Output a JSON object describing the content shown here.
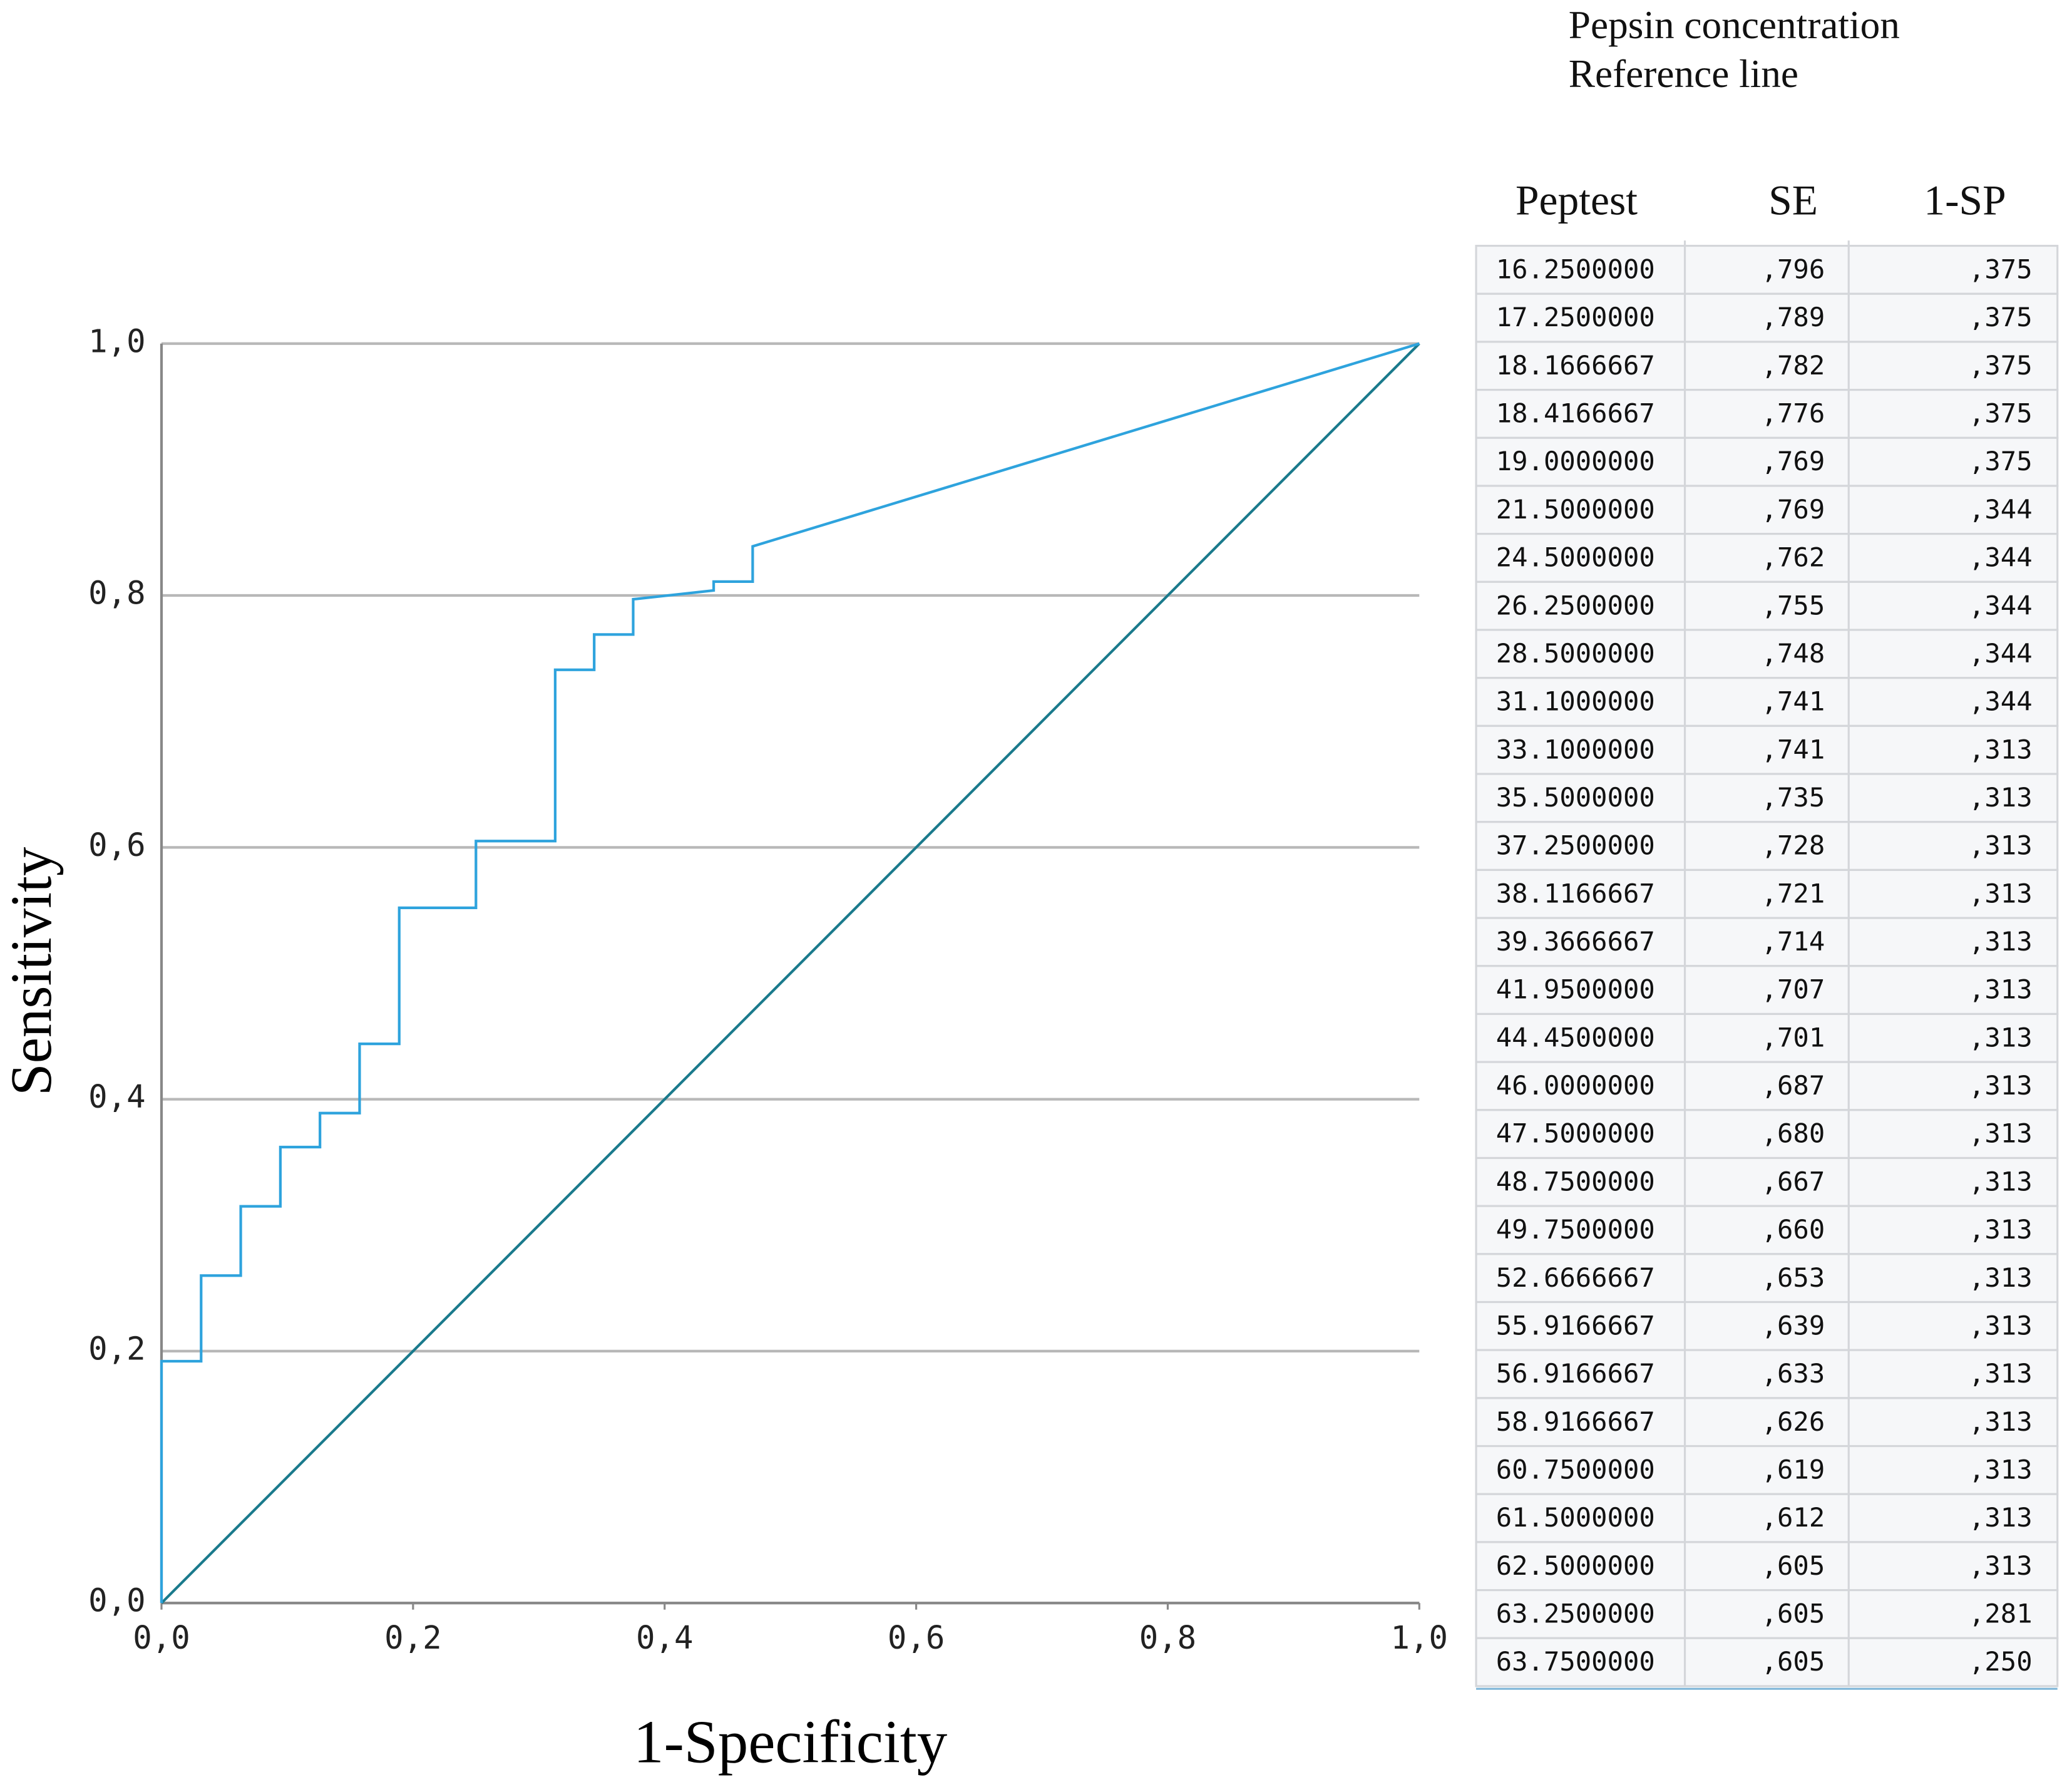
{
  "chart_data": {
    "type": "line",
    "x_label": "1-Specificity",
    "y_label": "Sensitivity",
    "xlim": [
      0,
      1
    ],
    "ylim": [
      0,
      1
    ],
    "xticks": [
      {
        "value": 0,
        "label": "0,0"
      },
      {
        "value": 0.2,
        "label": "0,2"
      },
      {
        "value": 0.4,
        "label": "0,4"
      },
      {
        "value": 0.6,
        "label": "0,6"
      },
      {
        "value": 0.8,
        "label": "0,8"
      },
      {
        "value": 1,
        "label": "1,0"
      }
    ],
    "yticks": [
      {
        "value": 0,
        "label": "0,0"
      },
      {
        "value": 0.2,
        "label": "0,2"
      },
      {
        "value": 0.4,
        "label": "0,4"
      },
      {
        "value": 0.6,
        "label": "0,6"
      },
      {
        "value": 0.8,
        "label": "0,8"
      },
      {
        "value": 1,
        "label": "1,0"
      }
    ],
    "grid": true,
    "series": [
      {
        "name": "Pepsin concentration",
        "color": "#2ea3dd",
        "x": [
          0,
          0,
          0.0315,
          0.0315,
          0.063,
          0.063,
          0.0945,
          0.0945,
          0.126,
          0.126,
          0.1575,
          0.1575,
          0.189,
          0.189,
          0.25,
          0.25,
          0.313,
          0.313,
          0.344,
          0.344,
          0.375,
          0.375,
          0.439,
          0.439,
          0.47,
          0.47,
          1
        ],
        "values": [
          0,
          0.192,
          0.192,
          0.26,
          0.26,
          0.315,
          0.315,
          0.362,
          0.362,
          0.389,
          0.389,
          0.444,
          0.444,
          0.552,
          0.552,
          0.605,
          0.605,
          0.741,
          0.741,
          0.769,
          0.769,
          0.797,
          0.804,
          0.811,
          0.811,
          0.839,
          1
        ]
      },
      {
        "name": "Reference line",
        "color": "#1a7a8c",
        "x": [
          0,
          1
        ],
        "values": [
          0,
          1
        ]
      }
    ]
  },
  "table": {
    "headers": [
      "Peptest",
      "SE",
      "1-SP"
    ],
    "rows": [
      [
        "16.2500000",
        ",796",
        ",375"
      ],
      [
        "17.2500000",
        ",789",
        ",375"
      ],
      [
        "18.1666667",
        ",782",
        ",375"
      ],
      [
        "18.4166667",
        ",776",
        ",375"
      ],
      [
        "19.0000000",
        ",769",
        ",375"
      ],
      [
        "21.5000000",
        ",769",
        ",344"
      ],
      [
        "24.5000000",
        ",762",
        ",344"
      ],
      [
        "26.2500000",
        ",755",
        ",344"
      ],
      [
        "28.5000000",
        ",748",
        ",344"
      ],
      [
        "31.1000000",
        ",741",
        ",344"
      ],
      [
        "33.1000000",
        ",741",
        ",313"
      ],
      [
        "35.5000000",
        ",735",
        ",313"
      ],
      [
        "37.2500000",
        ",728",
        ",313"
      ],
      [
        "38.1166667",
        ",721",
        ",313"
      ],
      [
        "39.3666667",
        ",714",
        ",313"
      ],
      [
        "41.9500000",
        ",707",
        ",313"
      ],
      [
        "44.4500000",
        ",701",
        ",313"
      ],
      [
        "46.0000000",
        ",687",
        ",313"
      ],
      [
        "47.5000000",
        ",680",
        ",313"
      ],
      [
        "48.7500000",
        ",667",
        ",313"
      ],
      [
        "49.7500000",
        ",660",
        ",313"
      ],
      [
        "52.6666667",
        ",653",
        ",313"
      ],
      [
        "55.9166667",
        ",639",
        ",313"
      ],
      [
        "56.9166667",
        ",633",
        ",313"
      ],
      [
        "58.9166667",
        ",626",
        ",313"
      ],
      [
        "60.7500000",
        ",619",
        ",313"
      ],
      [
        "61.5000000",
        ",612",
        ",313"
      ],
      [
        "62.5000000",
        ",605",
        ",313"
      ],
      [
        "63.2500000",
        ",605",
        ",281"
      ],
      [
        "63.7500000",
        ",605",
        ",250"
      ]
    ]
  }
}
